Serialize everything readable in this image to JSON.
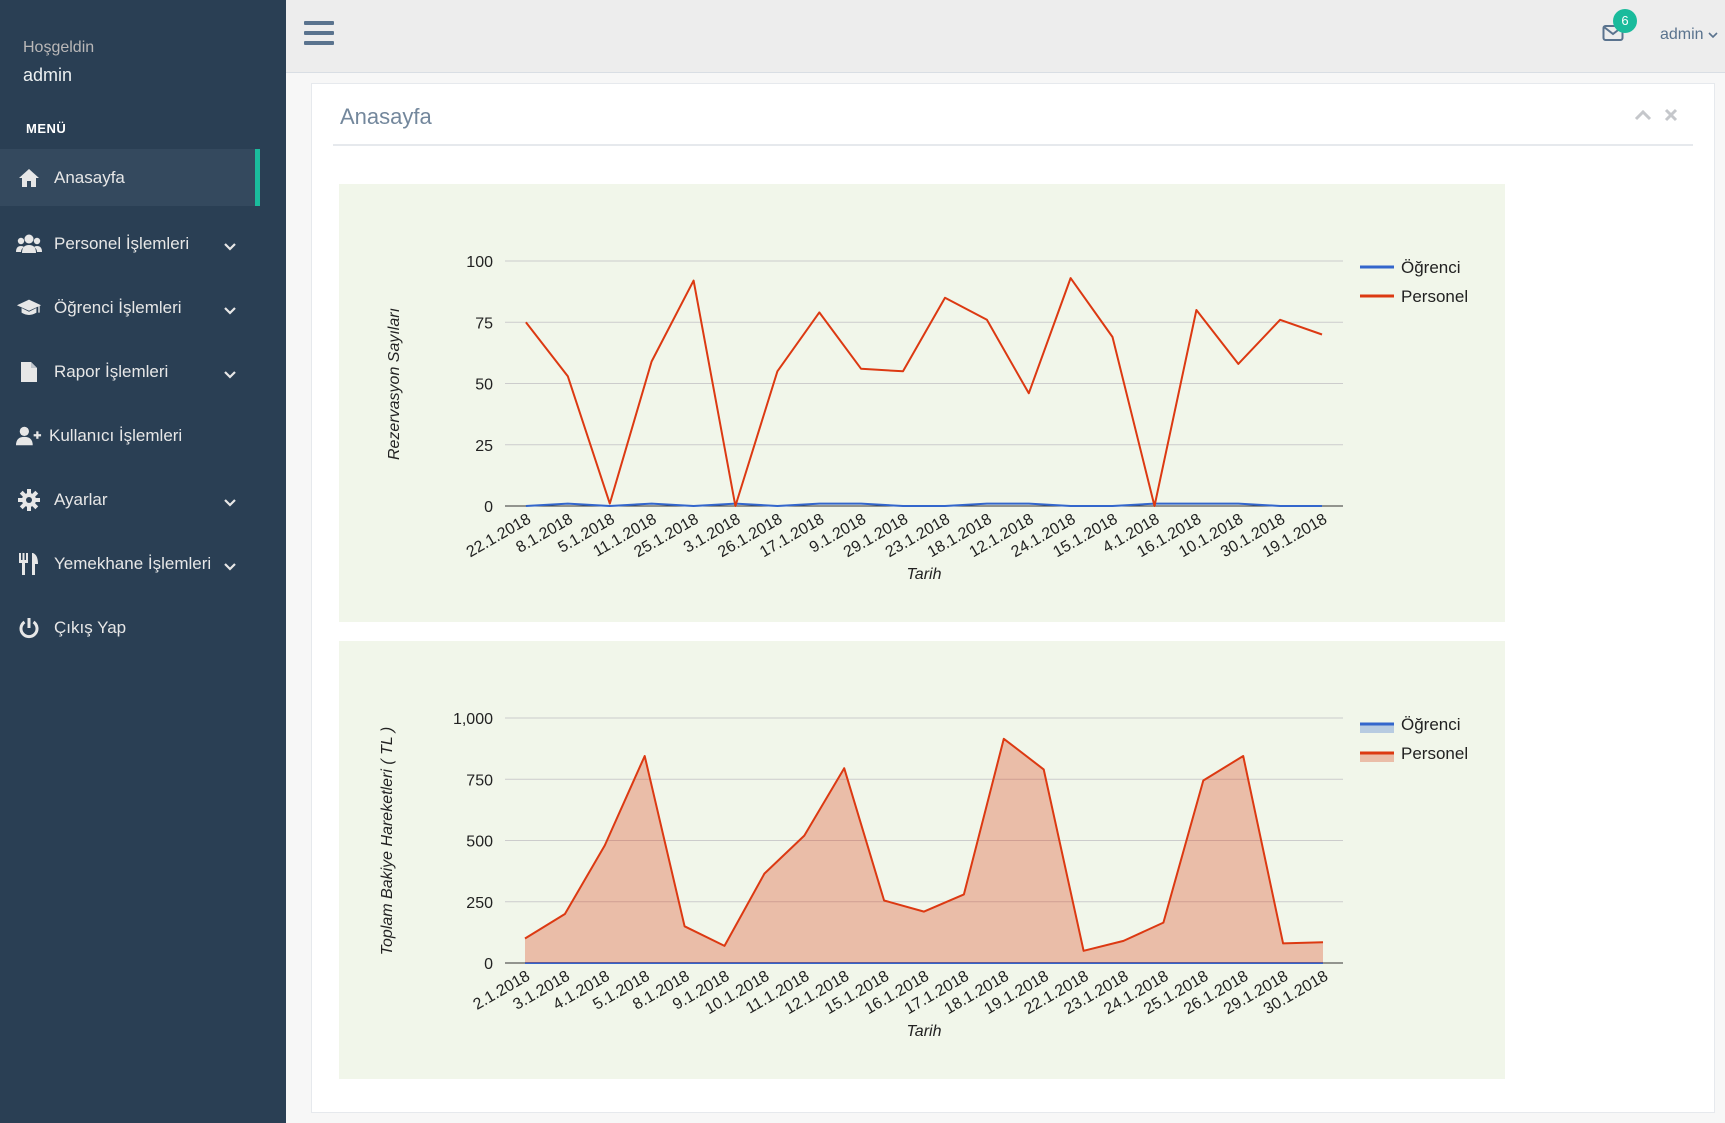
{
  "sidebar": {
    "welcome_label": "Hoşgeldin",
    "welcome_user": "admin",
    "menu_title": "MENÜ",
    "accent_color": "#1abb9c",
    "items": [
      {
        "label": "Anasayfa",
        "icon": "home-icon",
        "active": true,
        "has_submenu": false
      },
      {
        "label": "Personel İşlemleri",
        "icon": "users-icon",
        "has_submenu": true
      },
      {
        "label": "Öğrenci İşlemleri",
        "icon": "graduation-cap-icon",
        "has_submenu": true
      },
      {
        "label": "Rapor İşlemleri",
        "icon": "file-icon",
        "has_submenu": true
      },
      {
        "label": "Kullanıcı İşlemleri",
        "icon": "user-plus-icon",
        "has_submenu": false
      },
      {
        "label": "Ayarlar",
        "icon": "gear-icon",
        "has_submenu": true
      },
      {
        "label": "Yemekhane İşlemleri",
        "icon": "cutlery-icon",
        "has_submenu": true
      },
      {
        "label": "Çıkış Yap",
        "icon": "power-icon",
        "has_submenu": false
      }
    ]
  },
  "topbar": {
    "notification_count": "6",
    "user_name": "admin"
  },
  "panel": {
    "title": "Anasayfa"
  },
  "chart_data": [
    {
      "type": "line",
      "xlabel": "Tarih",
      "ylabel": "Rezervasyon Sayıları",
      "ylim": [
        0,
        100
      ],
      "yticks": [
        "0",
        "25",
        "50",
        "75",
        "100"
      ],
      "legend_position": "right",
      "grid": true,
      "categories": [
        "22.1.2018",
        "8.1.2018",
        "5.1.2018",
        "11.1.2018",
        "25.1.2018",
        "3.1.2018",
        "26.1.2018",
        "17.1.2018",
        "9.1.2018",
        "29.1.2018",
        "23.1.2018",
        "18.1.2018",
        "12.1.2018",
        "24.1.2018",
        "15.1.2018",
        "4.1.2018",
        "16.1.2018",
        "10.1.2018",
        "30.1.2018",
        "19.1.2018"
      ],
      "series": [
        {
          "name": "Öğrenci",
          "color": "#3366cc",
          "values": [
            0,
            1,
            0,
            1,
            0,
            1,
            0,
            1,
            1,
            0,
            0,
            1,
            1,
            0,
            0,
            1,
            1,
            1,
            0,
            0
          ]
        },
        {
          "name": "Personel",
          "color": "#dc3912",
          "values": [
            75,
            53,
            1,
            59,
            92,
            0,
            55,
            79,
            56,
            55,
            85,
            76,
            46,
            93,
            69,
            0,
            80,
            58,
            76,
            70
          ]
        }
      ]
    },
    {
      "type": "area",
      "xlabel": "Tarih",
      "ylabel": "Toplam Bakiye Hareketleri ( TL )",
      "ylim": [
        0,
        1000
      ],
      "yticks": [
        "0",
        "250",
        "500",
        "750",
        "1,000"
      ],
      "legend_position": "right",
      "grid": true,
      "categories": [
        "2.1.2018",
        "3.1.2018",
        "4.1.2018",
        "5.1.2018",
        "8.1.2018",
        "9.1.2018",
        "10.1.2018",
        "11.1.2018",
        "12.1.2018",
        "15.1.2018",
        "16.1.2018",
        "17.1.2018",
        "18.1.2018",
        "19.1.2018",
        "22.1.2018",
        "23.1.2018",
        "24.1.2018",
        "25.1.2018",
        "26.1.2018",
        "29.1.2018",
        "30.1.2018"
      ],
      "series": [
        {
          "name": "Öğrenci",
          "color": "#3366cc",
          "values": [
            0,
            0,
            0,
            0,
            0,
            0,
            0,
            0,
            0,
            0,
            0,
            0,
            0,
            0,
            0,
            0,
            0,
            0,
            0,
            0,
            0
          ]
        },
        {
          "name": "Personel",
          "color": "#dc3912",
          "values": [
            100,
            200,
            480,
            845,
            150,
            70,
            365,
            520,
            795,
            255,
            210,
            280,
            915,
            790,
            50,
            90,
            165,
            745,
            845,
            80,
            85
          ]
        }
      ]
    }
  ]
}
